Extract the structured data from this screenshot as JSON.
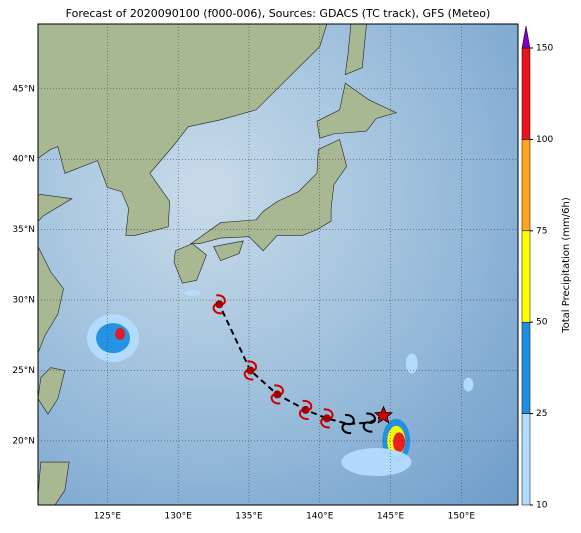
{
  "title": "Forecast of 2020090100 (f000-006), Sources: GDACS (TC track), GFS (Meteo)",
  "map": {
    "xlim": [
      120.1,
      154.0
    ],
    "ylim": [
      15.45,
      49.6
    ],
    "xticks": [
      {
        "value": 125,
        "label": "125°E"
      },
      {
        "value": 130,
        "label": "130°E"
      },
      {
        "value": 135,
        "label": "135°E"
      },
      {
        "value": 140,
        "label": "140°E"
      },
      {
        "value": 145,
        "label": "145°E"
      },
      {
        "value": 150,
        "label": "150°E"
      }
    ],
    "yticks": [
      {
        "value": 20,
        "label": "20°N"
      },
      {
        "value": 25,
        "label": "25°N"
      },
      {
        "value": 30,
        "label": "30°N"
      },
      {
        "value": 35,
        "label": "35°N"
      },
      {
        "value": 40,
        "label": "40°N"
      },
      {
        "value": 45,
        "label": "45°N"
      }
    ],
    "grid": true
  },
  "track": {
    "lon": [
      144.5,
      143.5,
      142.0,
      140.5,
      139.0,
      137.0,
      135.1,
      132.9
    ],
    "lat": [
      21.8,
      21.3,
      21.2,
      21.6,
      22.2,
      23.3,
      25.0,
      29.7
    ],
    "color": "#cc0000"
  },
  "colorbar": {
    "label": "Total Precipitation (mm/6h)",
    "ticks": [
      10,
      25,
      50,
      75,
      100,
      150
    ],
    "colors": [
      "#b3dcff",
      "#1e8fe0",
      "#ffff00",
      "#ffa520",
      "#e8141e"
    ],
    "extend_color": "#7d00c8"
  }
}
